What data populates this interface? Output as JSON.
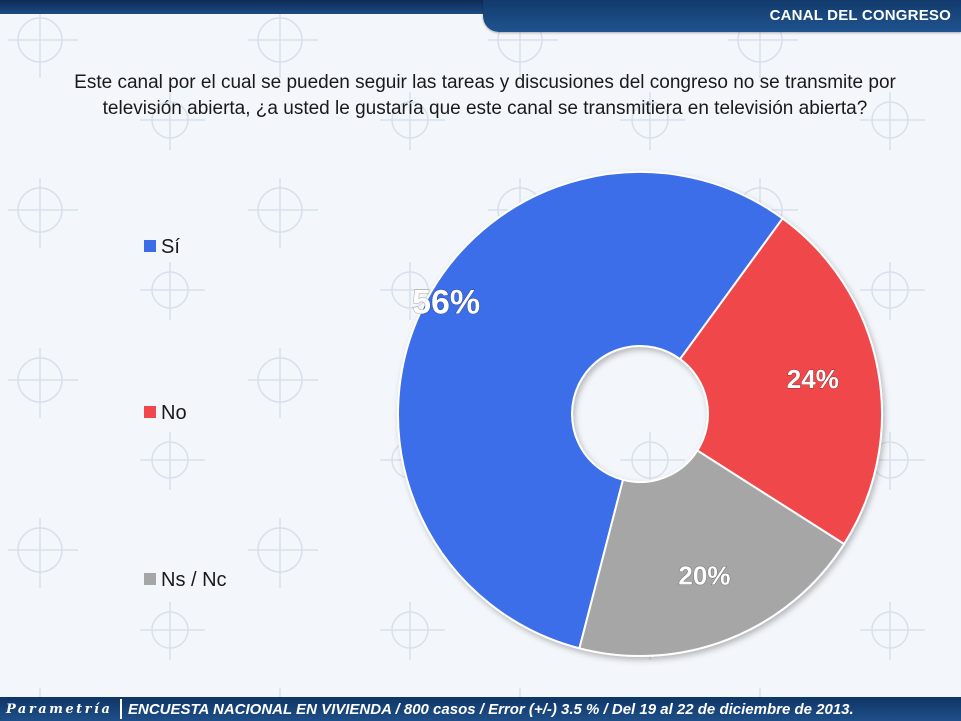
{
  "header": {
    "section_title": "CANAL DEL CONGRESO"
  },
  "question": "Este canal por el cual se pueden seguir las tareas y discusiones del congreso no se transmite por televisión abierta, ¿a usted le gustaría que este canal se transmitiera en televisión abierta?",
  "chart_data": {
    "type": "pie",
    "donut": true,
    "categories": [
      "Sí",
      "No",
      "Ns / Nc"
    ],
    "values": [
      56,
      24,
      20
    ],
    "labels": [
      "56%",
      "24%",
      "20%"
    ],
    "colors": [
      "#3a6ee8",
      "#f0474c",
      "#a6a6a6"
    ],
    "legend_position": "left"
  },
  "footer": {
    "logo": "Parametría",
    "source": "ENCUESTA NACIONAL EN VIVIENDA / 800 casos / Error (+/-) 3.5 % / Del 19 al 22 de diciembre de 2013."
  }
}
